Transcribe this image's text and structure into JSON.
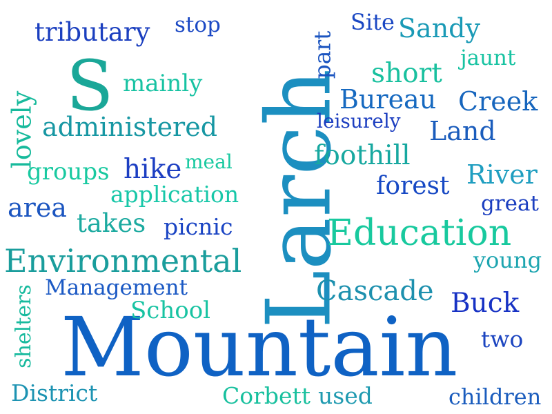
{
  "words": [
    "Mountain",
    "Larch",
    "S",
    "Environmental",
    "Education",
    "administered",
    "Cascade",
    "Management",
    "foothill",
    "Bureau",
    "tributary",
    "Sandy",
    "Creek",
    "Land",
    "forest",
    "River",
    "short",
    "Buck",
    "District",
    "Corbett",
    "used",
    "children",
    "School",
    "application",
    "takes",
    "hike",
    "picnic",
    "area",
    "groups",
    "lovely",
    "shelters",
    "mainly",
    "meal",
    "leisurely",
    "great",
    "young",
    "two",
    "jaunt",
    "part",
    "Site",
    "stop"
  ],
  "colors": {
    "dark_blue": "#1533c4",
    "blue": "#0f62c4",
    "teal": "#1c92b2",
    "green": "#16c9a0"
  }
}
